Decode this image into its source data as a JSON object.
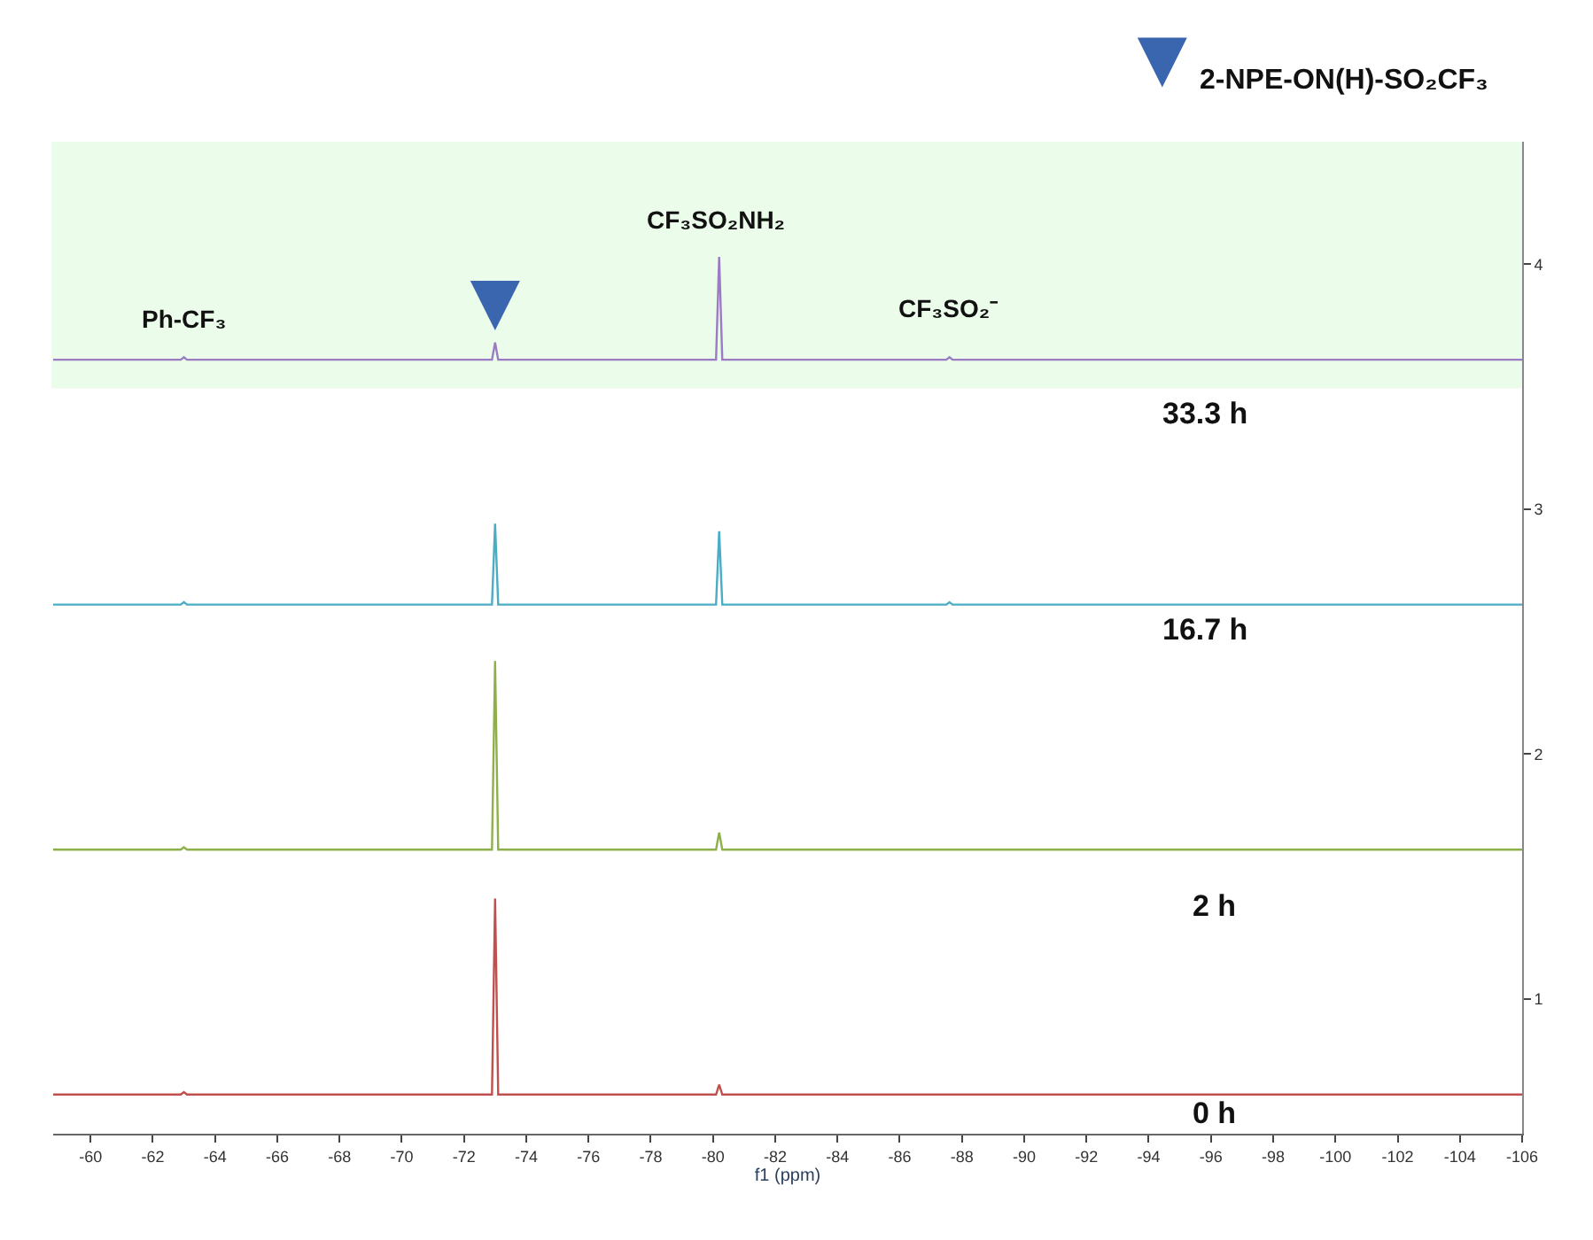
{
  "chart_data": {
    "type": "line",
    "xlabel": "f1 (ppm)",
    "xlim": [
      -58.8,
      -106
    ],
    "xticks": [
      -60,
      -62,
      -64,
      -66,
      -68,
      -70,
      -72,
      -74,
      -76,
      -78,
      -80,
      -82,
      -84,
      -86,
      -88,
      -90,
      -92,
      -94,
      -96,
      -98,
      -100,
      -102,
      -104,
      -106
    ],
    "ylim": [
      0.45,
      4.5
    ],
    "yticks": [
      1,
      2,
      3,
      4
    ],
    "x": [
      -58.8,
      -62.9,
      -63,
      -63.1,
      -72.9,
      -73,
      -73.1,
      -80.1,
      -80.2,
      -80.3,
      -87.5,
      -87.6,
      -87.7,
      -106
    ],
    "series": [
      {
        "color": "#c0504d",
        "values": [
          0.61,
          0.61,
          0.62,
          0.61,
          0.61,
          1.41,
          0.61,
          0.61,
          0.65,
          0.61,
          0.61,
          0.61,
          0.61,
          0.61
        ]
      },
      {
        "color": "#8db04a",
        "values": [
          1.61,
          1.61,
          1.62,
          1.61,
          1.61,
          2.38,
          1.61,
          1.61,
          1.68,
          1.61,
          1.61,
          1.61,
          1.61,
          1.61
        ]
      },
      {
        "color": "#4bacc6",
        "values": [
          2.61,
          2.61,
          2.62,
          2.61,
          2.61,
          2.94,
          2.61,
          2.61,
          2.91,
          2.61,
          2.61,
          2.62,
          2.61,
          2.61
        ]
      },
      {
        "color": "#9b7cc4",
        "values": [
          3.61,
          3.61,
          3.62,
          3.61,
          3.61,
          3.68,
          3.61,
          3.61,
          4.03,
          3.61,
          3.61,
          3.62,
          3.61,
          3.61
        ]
      }
    ],
    "bands": [
      {
        "axis": "y",
        "from": 3.5,
        "to": 4.5,
        "color": "#66ee66"
      }
    ],
    "annotations": [
      "Ph-CF₃",
      "CF₃SO₂NH₂",
      "CF₃SO₂⁻",
      "33.3 h",
      "16.7 h",
      "2 h",
      "0 h",
      "2-NPE-ON(H)-SO₂CF₃"
    ],
    "grid": false,
    "marker": "none",
    "line_style": "solid"
  }
}
